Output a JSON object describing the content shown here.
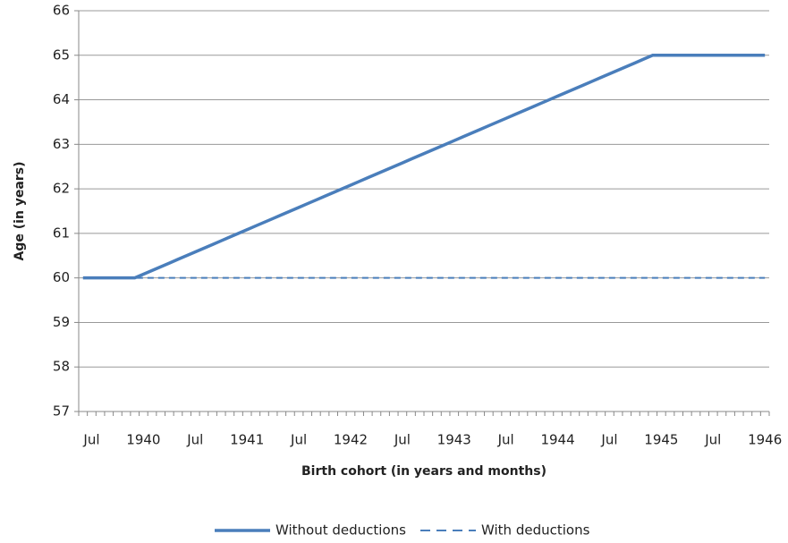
{
  "chart_data": {
    "type": "line",
    "x_label": "Birth cohort (in years and months)",
    "y_label": "Age (in years)",
    "categories": [
      null,
      "Jul",
      null,
      null,
      null,
      null,
      null,
      "1940",
      null,
      null,
      null,
      null,
      null,
      "Jul",
      null,
      null,
      null,
      null,
      null,
      "1941",
      null,
      null,
      null,
      null,
      null,
      "Jul",
      null,
      null,
      null,
      null,
      null,
      "1942",
      null,
      null,
      null,
      null,
      null,
      "Jul",
      null,
      null,
      null,
      null,
      null,
      "1943",
      null,
      null,
      null,
      null,
      null,
      "Jul",
      null,
      null,
      null,
      null,
      null,
      "1944",
      null,
      null,
      null,
      null,
      null,
      "Jul",
      null,
      null,
      null,
      null,
      null,
      "1945",
      null,
      null,
      null,
      null,
      null,
      "Jul",
      null,
      null,
      null,
      null,
      null,
      "1946"
    ],
    "series": [
      {
        "name": "Without deductions",
        "color": "#4a7ebb",
        "dash": false,
        "values": [
          60,
          60,
          60,
          60,
          60,
          60,
          60,
          60.083,
          60.167,
          60.25,
          60.333,
          60.417,
          60.5,
          60.583,
          60.667,
          60.75,
          60.833,
          60.917,
          61,
          61.083,
          61.167,
          61.25,
          61.333,
          61.417,
          61.5,
          61.583,
          61.667,
          61.75,
          61.833,
          61.917,
          62,
          62.083,
          62.167,
          62.25,
          62.333,
          62.417,
          62.5,
          62.583,
          62.667,
          62.75,
          62.833,
          62.917,
          63,
          63.083,
          63.167,
          63.25,
          63.333,
          63.417,
          63.5,
          63.583,
          63.667,
          63.75,
          63.833,
          63.917,
          64,
          64.083,
          64.167,
          64.25,
          64.333,
          64.417,
          64.5,
          64.583,
          64.667,
          64.75,
          64.833,
          64.917,
          65,
          65,
          65,
          65,
          65,
          65,
          65,
          65,
          65,
          65,
          65,
          65,
          65,
          65
        ]
      },
      {
        "name": "With deductions",
        "color": "#4a7ebb",
        "dash": true,
        "values": [
          60,
          60,
          60,
          60,
          60,
          60,
          60,
          60,
          60,
          60,
          60,
          60,
          60,
          60,
          60,
          60,
          60,
          60,
          60,
          60,
          60,
          60,
          60,
          60,
          60,
          60,
          60,
          60,
          60,
          60,
          60,
          60,
          60,
          60,
          60,
          60,
          60,
          60,
          60,
          60,
          60,
          60,
          60,
          60,
          60,
          60,
          60,
          60,
          60,
          60,
          60,
          60,
          60,
          60,
          60,
          60,
          60,
          60,
          60,
          60,
          60,
          60,
          60,
          60,
          60,
          60,
          60,
          60,
          60,
          60,
          60,
          60,
          60,
          60,
          60,
          60,
          60,
          60,
          60,
          60
        ]
      }
    ],
    "ylim": [
      57,
      66
    ],
    "yticks": [
      57,
      58,
      59,
      60,
      61,
      62,
      63,
      64,
      65,
      66
    ],
    "grid": true,
    "legend": "bottom"
  }
}
